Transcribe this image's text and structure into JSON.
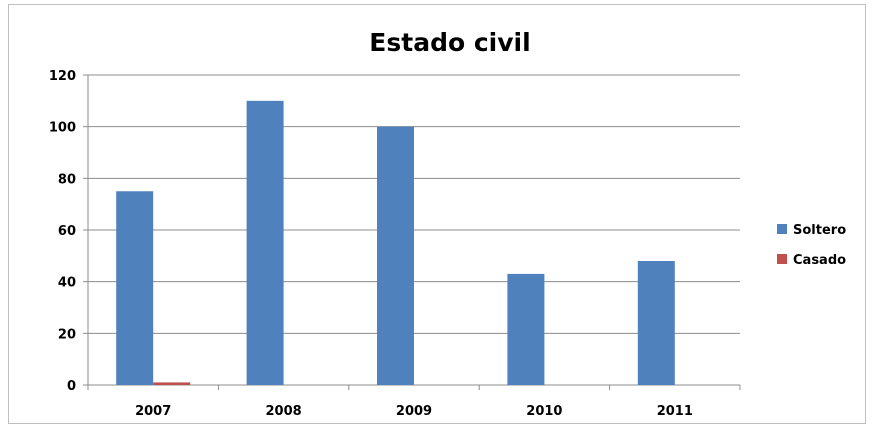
{
  "chart_data": {
    "type": "bar",
    "title": "Estado civil",
    "categories": [
      "2007",
      "2008",
      "2009",
      "2010",
      "2011"
    ],
    "series": [
      {
        "name": "Soltero",
        "color": "#4f81bd",
        "values": [
          75,
          110,
          100,
          43,
          48
        ]
      },
      {
        "name": "Casado",
        "color": "#c0504d",
        "values": [
          1,
          0,
          0,
          0,
          0
        ]
      }
    ],
    "ylim": [
      0,
      120
    ],
    "yticks": [
      "0",
      "20",
      "40",
      "60",
      "80",
      "100",
      "120"
    ],
    "grid": true,
    "legend": "right"
  }
}
